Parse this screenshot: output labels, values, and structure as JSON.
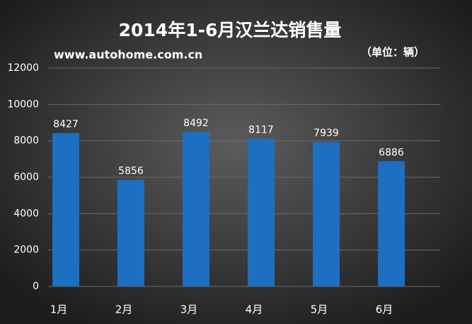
{
  "chart_data": {
    "type": "bar",
    "title": "2014年1-6月汉兰达销售量",
    "subtitle": "www.autohome.com.cn",
    "unit_label": "（单位：辆）",
    "categories": [
      "1月",
      "2月",
      "3月",
      "4月",
      "5月",
      "6月"
    ],
    "values": [
      8427,
      5856,
      8492,
      8117,
      7939,
      6886
    ],
    "color": "#1c6fc1",
    "ylim": [
      0,
      12000
    ],
    "yticks": [
      0,
      2000,
      4000,
      6000,
      8000,
      10000,
      12000
    ],
    "grid": true
  }
}
